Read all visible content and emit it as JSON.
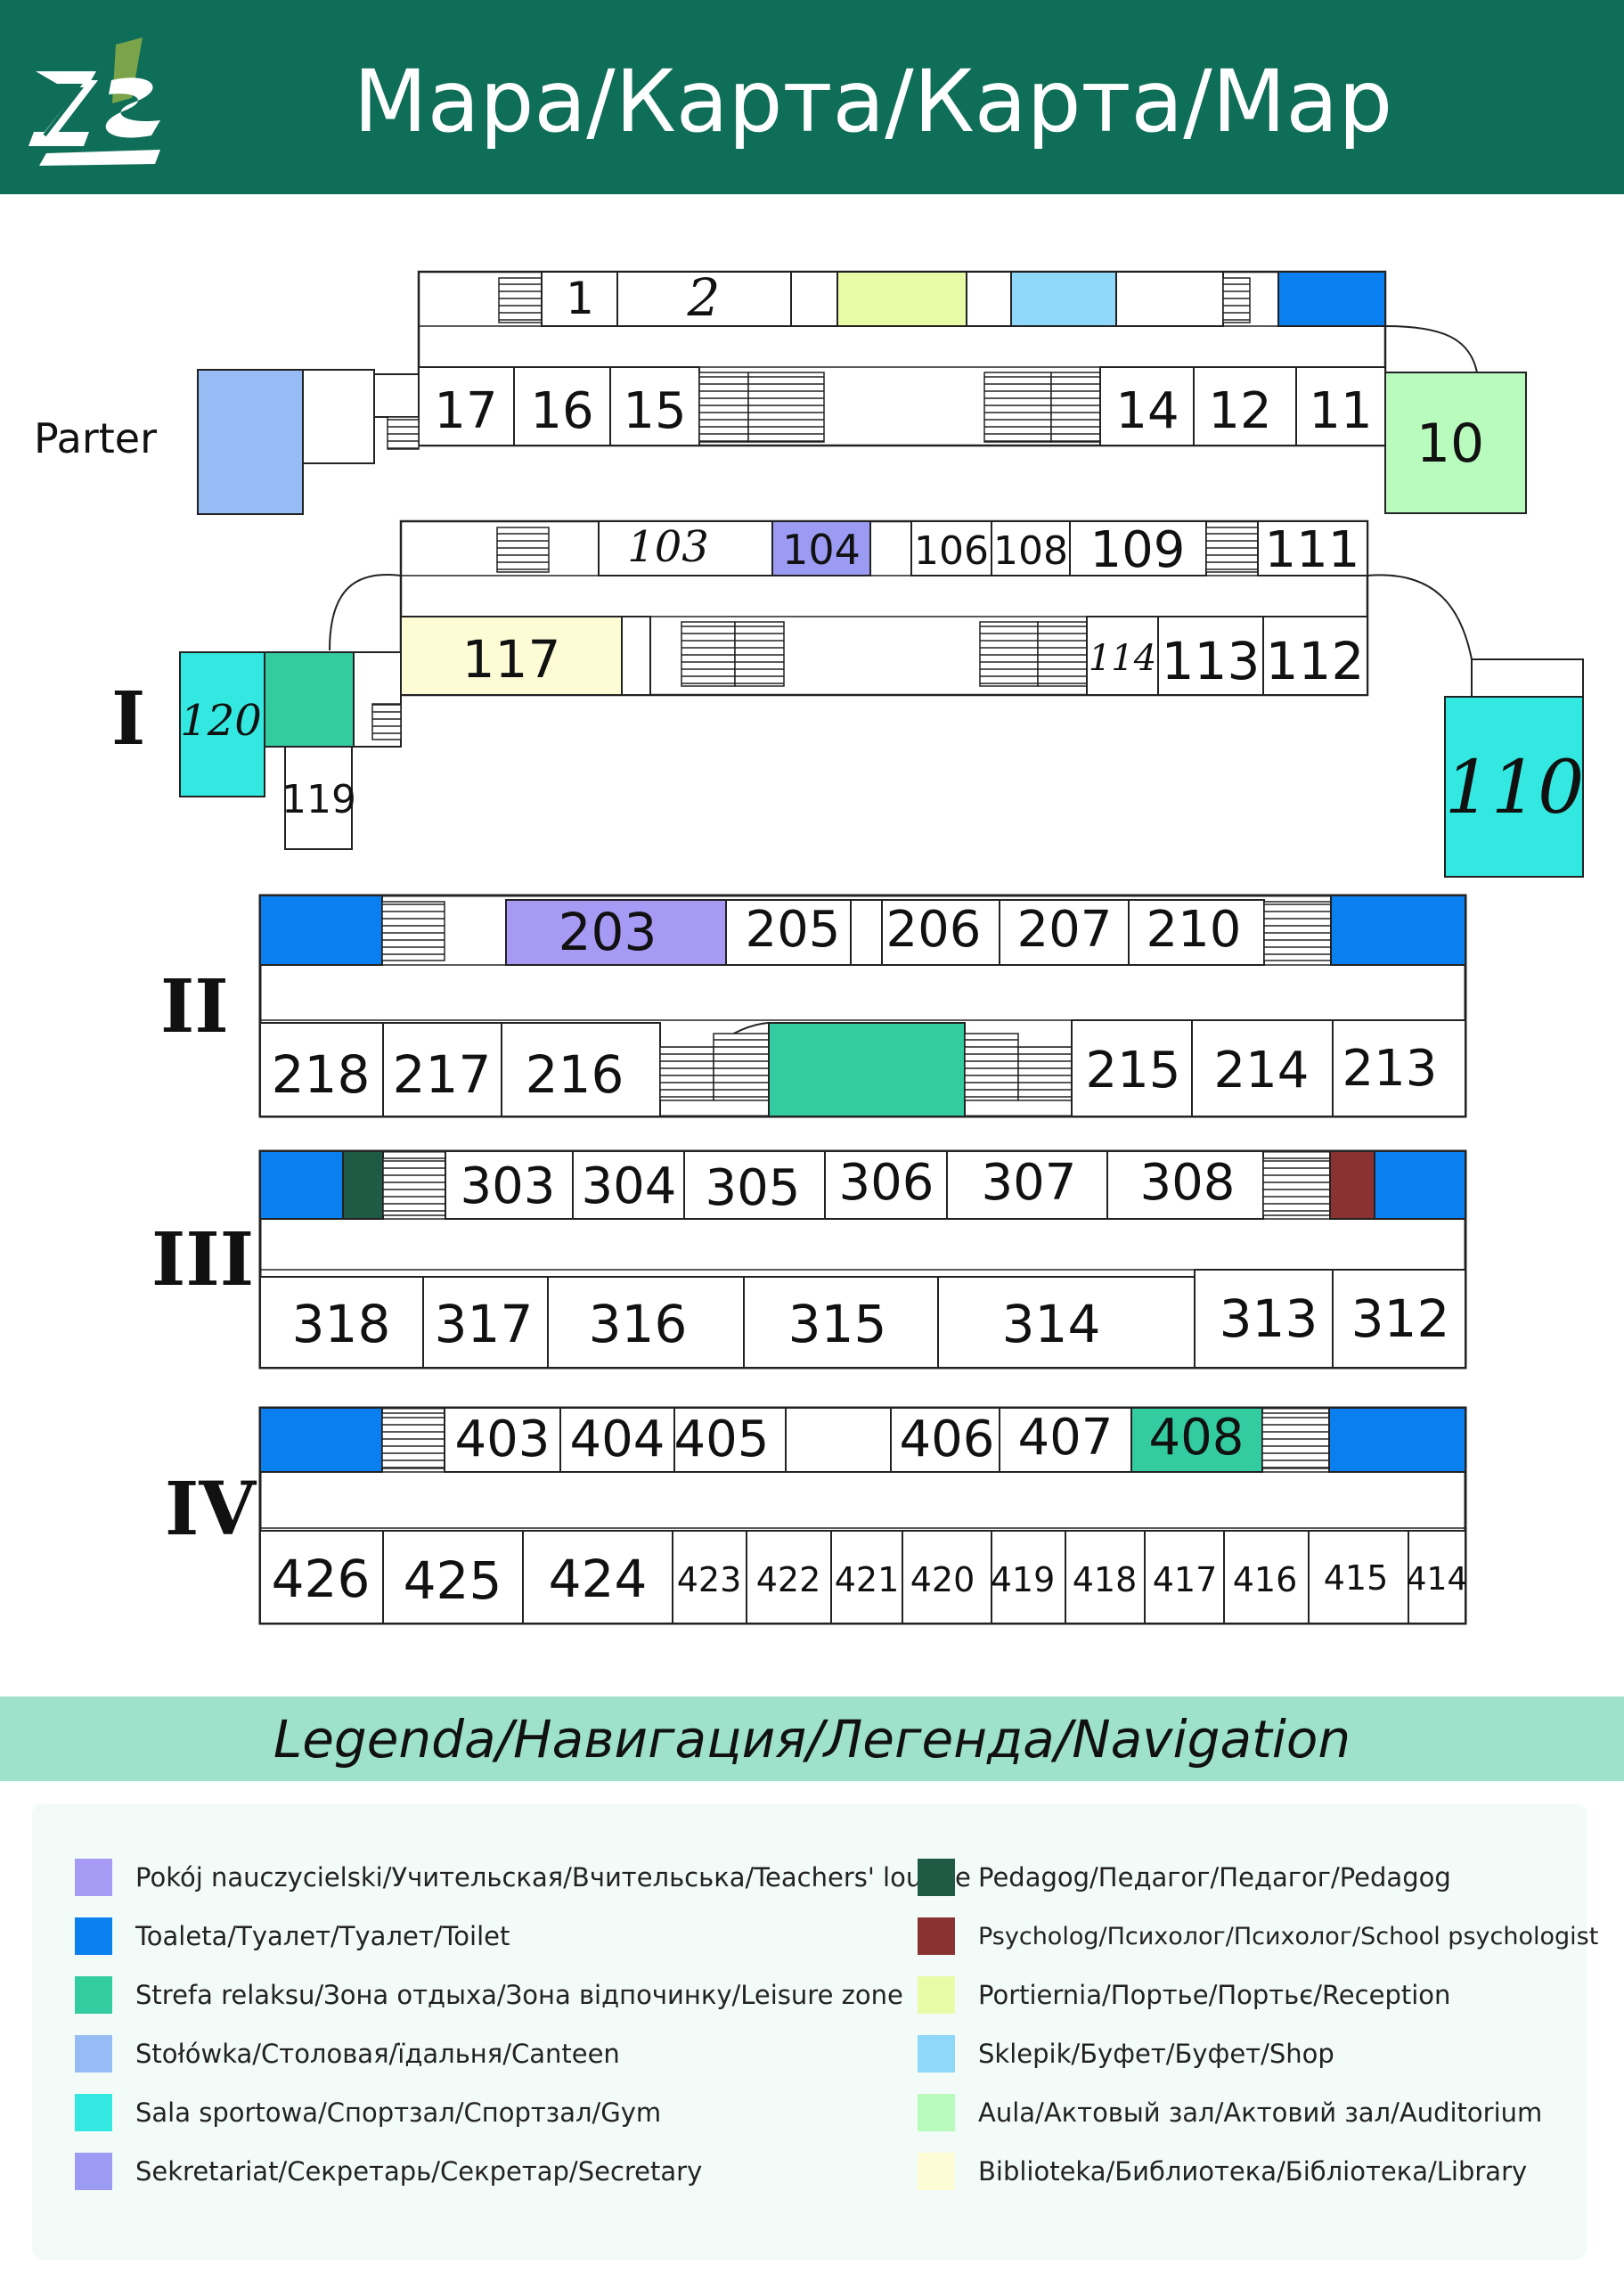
{
  "header": {
    "title": "Мара/Карта/Карта/Map",
    "logo_icon": "zs1-school-logo-icon"
  },
  "colors": {
    "teachers": "#a79af4",
    "toilet": "#0a7ff0",
    "leisure": "#33cba0",
    "canteen": "#97bcf5",
    "gym": "#33e8e0",
    "secretary": "#9b9bf4",
    "pedagog": "#1f5a45",
    "psychologist": "#8a3232",
    "reception": "#e8fca8",
    "shop": "#8fd8fa",
    "auditorium": "#b9fbbc",
    "library": "#fdfcd5"
  },
  "map": {
    "floors": [
      {
        "id": "parter",
        "label": "Parter",
        "rooms": [
          {
            "label": "1",
            "color": null
          },
          {
            "label": "2",
            "color": null
          },
          {
            "label": "",
            "color": "reception"
          },
          {
            "label": "",
            "color": "shop"
          },
          {
            "label": "",
            "color": "toilet"
          },
          {
            "label": "17",
            "color": null
          },
          {
            "label": "16",
            "color": null
          },
          {
            "label": "15",
            "color": null
          },
          {
            "label": "14",
            "color": null
          },
          {
            "label": "12",
            "color": null
          },
          {
            "label": "11",
            "color": null
          },
          {
            "label": "10",
            "color": "auditorium"
          },
          {
            "label": "",
            "color": "canteen"
          }
        ]
      },
      {
        "id": "first",
        "label": "I",
        "rooms": [
          {
            "label": "103",
            "color": null
          },
          {
            "label": "104",
            "color": "secretary"
          },
          {
            "label": "106",
            "color": null
          },
          {
            "label": "108",
            "color": null
          },
          {
            "label": "109",
            "color": null
          },
          {
            "label": "111",
            "color": null
          },
          {
            "label": "117",
            "color": "library"
          },
          {
            "label": "114",
            "color": null
          },
          {
            "label": "113",
            "color": null
          },
          {
            "label": "112",
            "color": null
          },
          {
            "label": "120",
            "color": "gym"
          },
          {
            "label": "",
            "color": "leisure"
          },
          {
            "label": "119",
            "color": null
          },
          {
            "label": "110",
            "color": "gym"
          }
        ]
      },
      {
        "id": "second",
        "label": "II",
        "rooms": [
          {
            "label": "",
            "color": "toilet"
          },
          {
            "label": "203",
            "color": "teachers"
          },
          {
            "label": "205",
            "color": null
          },
          {
            "label": "206",
            "color": null
          },
          {
            "label": "207",
            "color": null
          },
          {
            "label": "210",
            "color": null
          },
          {
            "label": "",
            "color": "toilet"
          },
          {
            "label": "218",
            "color": null
          },
          {
            "label": "217",
            "color": null
          },
          {
            "label": "216",
            "color": null
          },
          {
            "label": "",
            "color": "leisure"
          },
          {
            "label": "215",
            "color": null
          },
          {
            "label": "214",
            "color": null
          },
          {
            "label": "213",
            "color": null
          }
        ]
      },
      {
        "id": "third",
        "label": "III",
        "rooms": [
          {
            "label": "",
            "color": "toilet"
          },
          {
            "label": "",
            "color": "pedagog"
          },
          {
            "label": "303",
            "color": null
          },
          {
            "label": "304",
            "color": null
          },
          {
            "label": "305",
            "color": null
          },
          {
            "label": "306",
            "color": null
          },
          {
            "label": "307",
            "color": null
          },
          {
            "label": "308",
            "color": null
          },
          {
            "label": "",
            "color": "psychologist"
          },
          {
            "label": "",
            "color": "toilet"
          },
          {
            "label": "318",
            "color": null
          },
          {
            "label": "317",
            "color": null
          },
          {
            "label": "316",
            "color": null
          },
          {
            "label": "315",
            "color": null
          },
          {
            "label": "314",
            "color": null
          },
          {
            "label": "313",
            "color": null
          },
          {
            "label": "312",
            "color": null
          }
        ]
      },
      {
        "id": "fourth",
        "label": "IV",
        "rooms": [
          {
            "label": "",
            "color": "toilet"
          },
          {
            "label": "403",
            "color": null
          },
          {
            "label": "404",
            "color": null
          },
          {
            "label": "405",
            "color": null
          },
          {
            "label": "406",
            "color": null
          },
          {
            "label": "407",
            "color": null
          },
          {
            "label": "408",
            "color": "leisure"
          },
          {
            "label": "",
            "color": "toilet"
          },
          {
            "label": "426",
            "color": null
          },
          {
            "label": "425",
            "color": null
          },
          {
            "label": "424",
            "color": null
          },
          {
            "label": "423",
            "color": null
          },
          {
            "label": "422",
            "color": null
          },
          {
            "label": "421",
            "color": null
          },
          {
            "label": "420",
            "color": null
          },
          {
            "label": "419",
            "color": null
          },
          {
            "label": "418",
            "color": null
          },
          {
            "label": "417",
            "color": null
          },
          {
            "label": "416",
            "color": null
          },
          {
            "label": "415",
            "color": null
          },
          {
            "label": "414",
            "color": null
          }
        ]
      }
    ]
  },
  "legend": {
    "title": "Legenda/Навигация/Легенда/Navigation",
    "items": [
      {
        "key": "teachers",
        "text": "Pokój nauczycielski/Учительская/Вчительська/Teachers' lounge"
      },
      {
        "key": "toilet",
        "text": "Toaleta/Туалет/Туалет/Toilet"
      },
      {
        "key": "leisure",
        "text": "Strefa relaksu/Зона отдыха/Зона відпочинку/Leisure zone"
      },
      {
        "key": "canteen",
        "text": "Stołówka/Столовая/їдальня/Canteen"
      },
      {
        "key": "gym",
        "text": "Sala sportowa/Спортзал/Спортзал/Gym"
      },
      {
        "key": "secretary",
        "text": "Sekretariat/Секретарь/Секретар/Secretary"
      },
      {
        "key": "pedagog",
        "text": "Pedagog/Педагог/Педагог/Pedagog"
      },
      {
        "key": "psychologist",
        "text": "Psycholog/Психолог/Психолог/School psychologist"
      },
      {
        "key": "reception",
        "text": "Portiernia/Портье/Портьє/Reception"
      },
      {
        "key": "shop",
        "text": "Sklepik/Буфет/Буфет/Shop"
      },
      {
        "key": "auditorium",
        "text": "Aula/Актовый зал/Актовий зал/Auditorium"
      },
      {
        "key": "library",
        "text": "Biblioteka/Библиотека/Бібліотека/Library"
      }
    ]
  }
}
